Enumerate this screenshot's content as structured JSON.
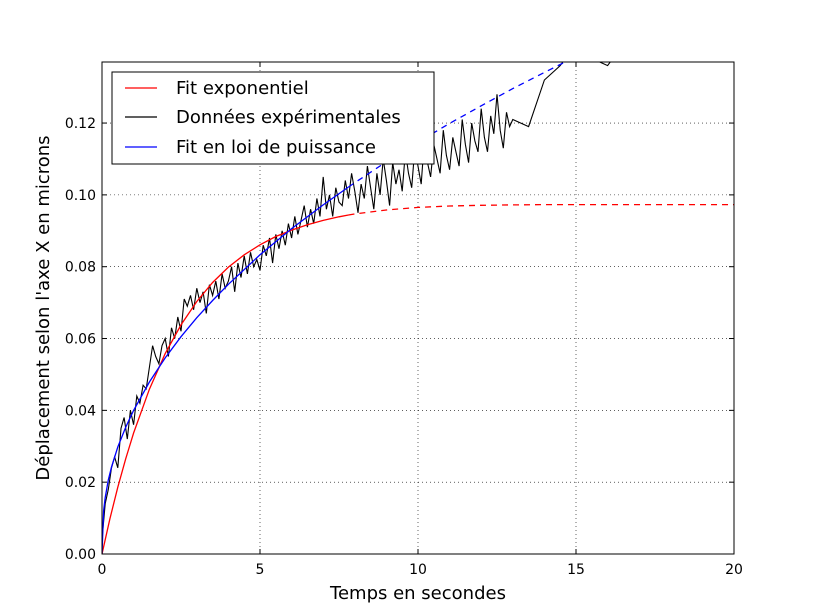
{
  "chart_data": {
    "type": "line",
    "xlabel": "Temps en secondes",
    "ylabel": "Déplacement selon l'axe X en microns",
    "xlim": [
      0,
      20
    ],
    "ylim": [
      0,
      0.137
    ],
    "xticks": [
      "0",
      "5",
      "10",
      "15",
      "20"
    ],
    "yticks": [
      "0.00",
      "0.02",
      "0.04",
      "0.06",
      "0.08",
      "0.10",
      "0.12"
    ],
    "grid": true,
    "legend_position": "top-left",
    "series": [
      {
        "name": "Fit exponentiel",
        "color": "#ff0000",
        "style": "solid-then-dashed",
        "solid_until_x": 7.8,
        "x": [
          0,
          0.25,
          0.5,
          0.75,
          1,
          1.5,
          2,
          2.5,
          3,
          3.5,
          4,
          4.5,
          5,
          5.5,
          6,
          6.5,
          7,
          7.5,
          7.8,
          8,
          9,
          10,
          11,
          12,
          13,
          14,
          15,
          16,
          17,
          18,
          19,
          20
        ],
        "y": [
          0,
          0.0098,
          0.0186,
          0.0265,
          0.0337,
          0.0459,
          0.0558,
          0.0638,
          0.0703,
          0.0756,
          0.0799,
          0.0833,
          0.0861,
          0.0884,
          0.0902,
          0.0917,
          0.0929,
          0.0939,
          0.0944,
          0.0947,
          0.0958,
          0.0965,
          0.0969,
          0.0971,
          0.0972,
          0.0973,
          0.0973,
          0.0973,
          0.0973,
          0.0973,
          0.0973,
          0.0973
        ]
      },
      {
        "name": "Données expérimentales",
        "color": "#000000",
        "style": "solid",
        "x": [
          0,
          0.1,
          0.2,
          0.3,
          0.4,
          0.5,
          0.6,
          0.7,
          0.8,
          0.9,
          1.0,
          1.1,
          1.2,
          1.3,
          1.4,
          1.5,
          1.6,
          1.7,
          1.8,
          1.9,
          2.0,
          2.1,
          2.2,
          2.3,
          2.4,
          2.5,
          2.6,
          2.7,
          2.8,
          2.9,
          3.0,
          3.1,
          3.2,
          3.3,
          3.4,
          3.5,
          3.6,
          3.7,
          3.8,
          3.9,
          4.0,
          4.1,
          4.2,
          4.3,
          4.4,
          4.5,
          4.6,
          4.7,
          4.8,
          4.9,
          5.0,
          5.1,
          5.2,
          5.3,
          5.4,
          5.5,
          5.6,
          5.7,
          5.8,
          5.9,
          6.0,
          6.1,
          6.2,
          6.3,
          6.4,
          6.5,
          6.6,
          6.7,
          6.8,
          6.9,
          7.0,
          7.1,
          7.2,
          7.3,
          7.4,
          7.5,
          7.6,
          7.7,
          7.8,
          7.9,
          8.0,
          8.1,
          8.2,
          8.3,
          8.4,
          8.5,
          8.6,
          8.7,
          8.8,
          8.9,
          9.0,
          9.1,
          9.2,
          9.3,
          9.4,
          9.5,
          9.6,
          9.7,
          9.8,
          9.9,
          10.0,
          10.1,
          10.2,
          10.3,
          10.4,
          10.5,
          10.6,
          10.7,
          10.8,
          10.9,
          11.0,
          11.1,
          11.2,
          11.3,
          11.4,
          11.5,
          11.6,
          11.7,
          11.8,
          11.9,
          12.0,
          12.1,
          12.2,
          12.3,
          12.4,
          12.5,
          12.6,
          12.7,
          12.8,
          12.9,
          13.0,
          13.5,
          14.0,
          14.5,
          15.0,
          15.5,
          16.0,
          16.5,
          17.0
        ],
        "y": [
          0.004,
          0.014,
          0.018,
          0.024,
          0.027,
          0.024,
          0.035,
          0.038,
          0.032,
          0.04,
          0.036,
          0.044,
          0.042,
          0.047,
          0.046,
          0.052,
          0.058,
          0.055,
          0.053,
          0.058,
          0.06,
          0.055,
          0.063,
          0.06,
          0.066,
          0.062,
          0.071,
          0.069,
          0.072,
          0.068,
          0.074,
          0.07,
          0.073,
          0.067,
          0.075,
          0.072,
          0.076,
          0.071,
          0.078,
          0.074,
          0.076,
          0.08,
          0.073,
          0.081,
          0.077,
          0.083,
          0.078,
          0.084,
          0.08,
          0.082,
          0.079,
          0.086,
          0.083,
          0.088,
          0.081,
          0.089,
          0.085,
          0.09,
          0.086,
          0.092,
          0.088,
          0.094,
          0.089,
          0.093,
          0.097,
          0.091,
          0.096,
          0.092,
          0.099,
          0.094,
          0.105,
          0.096,
          0.1,
          0.094,
          0.102,
          0.098,
          0.097,
          0.104,
          0.099,
          0.106,
          0.101,
          0.095,
          0.103,
          0.099,
          0.108,
          0.102,
          0.096,
          0.106,
          0.1,
          0.11,
          0.104,
          0.097,
          0.109,
          0.103,
          0.107,
          0.101,
          0.112,
          0.106,
          0.102,
          0.113,
          0.108,
          0.103,
          0.115,
          0.109,
          0.105,
          0.114,
          0.11,
          0.106,
          0.118,
          0.111,
          0.107,
          0.116,
          0.112,
          0.108,
          0.121,
          0.114,
          0.109,
          0.12,
          0.115,
          0.112,
          0.124,
          0.116,
          0.112,
          0.122,
          0.117,
          0.128,
          0.118,
          0.113,
          0.123,
          0.119,
          0.121,
          0.119,
          0.132,
          0.136,
          0.142,
          0.138,
          0.136,
          0.142,
          0.148
        ]
      },
      {
        "name": "Fit en loi de puissance",
        "color": "#0000ff",
        "style": "solid-then-dashed",
        "solid_until_x": 7.8,
        "x": [
          0,
          0.05,
          0.1,
          0.2,
          0.3,
          0.5,
          0.75,
          1,
          1.5,
          2,
          2.5,
          3,
          3.5,
          4,
          5,
          6,
          7,
          7.8,
          8,
          9,
          10,
          11,
          12,
          13,
          14,
          15,
          16,
          17,
          17.5
        ],
        "y": [
          0,
          0.012,
          0.0157,
          0.0206,
          0.0242,
          0.0298,
          0.0353,
          0.04,
          0.0479,
          0.0546,
          0.0605,
          0.0658,
          0.0706,
          0.0751,
          0.0833,
          0.0906,
          0.0972,
          0.1022,
          0.1034,
          0.1092,
          0.1147,
          0.1199,
          0.1248,
          0.1296,
          0.1341,
          0.1385,
          0.1427,
          0.1467,
          0.1489
        ]
      }
    ]
  }
}
